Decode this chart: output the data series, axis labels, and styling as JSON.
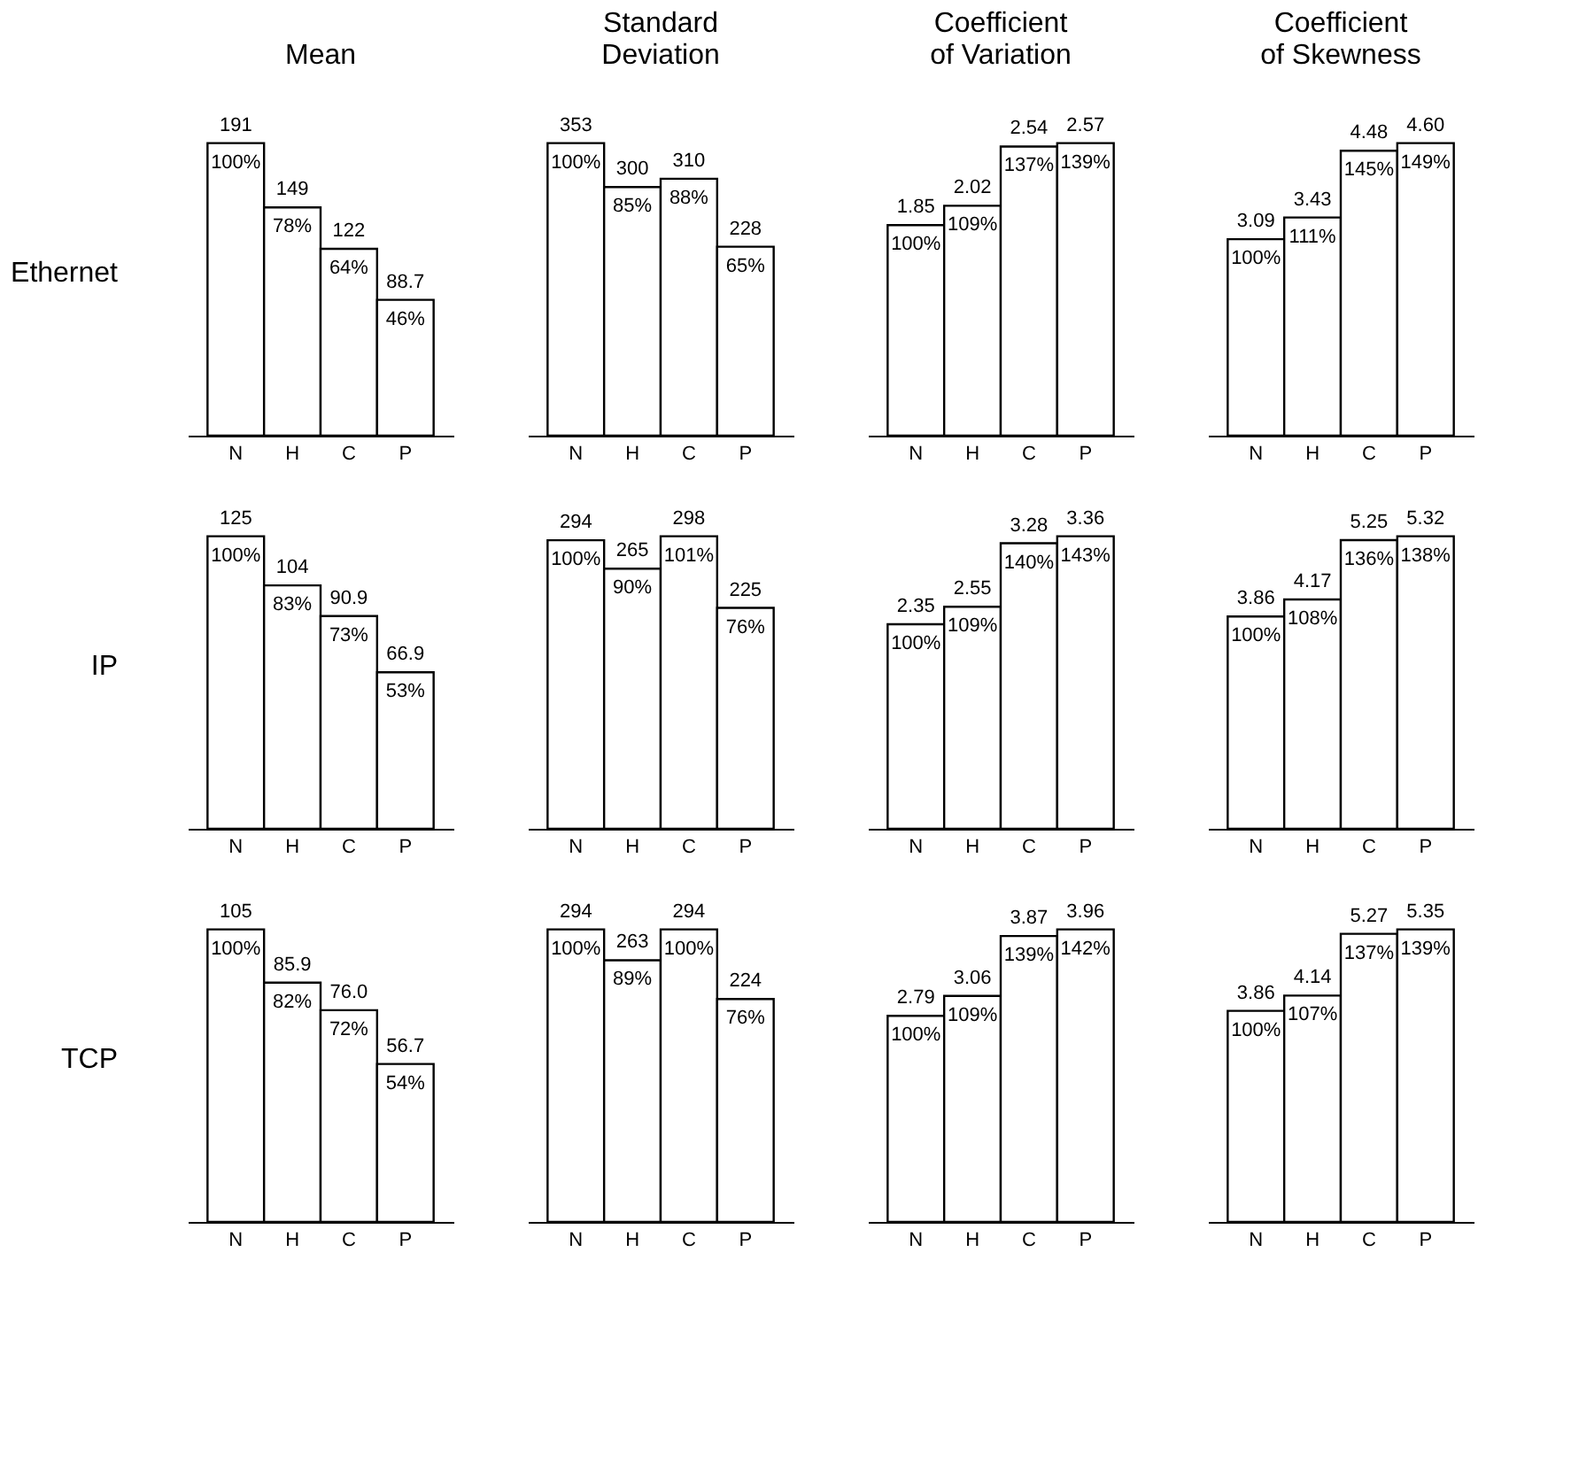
{
  "chart_data": [
    {
      "type": "bar",
      "title": "Mean",
      "ylabel": "Ethernet",
      "categories": [
        "N",
        "H",
        "C",
        "P"
      ],
      "values": [
        191,
        149,
        122,
        88.7
      ],
      "value_labels": [
        "191",
        "149",
        "122",
        "88.7"
      ],
      "color": "#ffffff",
      "tick_labels": "x",
      "annotations": [
        "100%",
        "78%",
        "64%",
        "46%"
      ]
    },
    {
      "type": "bar",
      "title": "Standard Deviation",
      "categories": [
        "N",
        "H",
        "C",
        "P"
      ],
      "values": [
        353,
        300,
        310,
        228
      ],
      "value_labels": [
        "353",
        "300",
        "310",
        "228"
      ],
      "color": "#ffffff",
      "tick_labels": "x",
      "annotations": [
        "100%",
        "85%",
        "88%",
        "65%"
      ]
    },
    {
      "type": "bar",
      "title": "Coefficient of Variation",
      "categories": [
        "N",
        "H",
        "C",
        "P"
      ],
      "values": [
        1.85,
        2.02,
        2.54,
        2.57
      ],
      "value_labels": [
        "1.85",
        "2.02",
        "2.54",
        "2.57"
      ],
      "color": "#ffffff",
      "tick_labels": "x",
      "annotations": [
        "100%",
        "109%",
        "137%",
        "139%"
      ]
    },
    {
      "type": "bar",
      "title": "Coefficient of Skewness",
      "categories": [
        "N",
        "H",
        "C",
        "P"
      ],
      "values": [
        3.09,
        3.43,
        4.48,
        4.6
      ],
      "value_labels": [
        "3.09",
        "3.43",
        "4.48",
        "4.60"
      ],
      "color": "#ffffff",
      "tick_labels": "x",
      "annotations": [
        "100%",
        "111%",
        "145%",
        "149%"
      ]
    },
    {
      "type": "bar",
      "ylabel": "IP",
      "categories": [
        "N",
        "H",
        "C",
        "P"
      ],
      "values": [
        125,
        104,
        90.9,
        66.9
      ],
      "value_labels": [
        "125",
        "104",
        "90.9",
        "66.9"
      ],
      "color": "#ffffff",
      "tick_labels": "x",
      "annotations": [
        "100%",
        "83%",
        "73%",
        "53%"
      ]
    },
    {
      "type": "bar",
      "categories": [
        "N",
        "H",
        "C",
        "P"
      ],
      "values": [
        294,
        265,
        298,
        225
      ],
      "value_labels": [
        "294",
        "265",
        "298",
        "225"
      ],
      "color": "#ffffff",
      "tick_labels": "x",
      "annotations": [
        "100%",
        "90%",
        "101%",
        "76%"
      ]
    },
    {
      "type": "bar",
      "categories": [
        "N",
        "H",
        "C",
        "P"
      ],
      "values": [
        2.35,
        2.55,
        3.28,
        3.36
      ],
      "value_labels": [
        "2.35",
        "2.55",
        "3.28",
        "3.36"
      ],
      "color": "#ffffff",
      "tick_labels": "x",
      "annotations": [
        "100%",
        "109%",
        "140%",
        "143%"
      ]
    },
    {
      "type": "bar",
      "categories": [
        "N",
        "H",
        "C",
        "P"
      ],
      "values": [
        3.86,
        4.17,
        5.25,
        5.32
      ],
      "value_labels": [
        "3.86",
        "4.17",
        "5.25",
        "5.32"
      ],
      "color": "#ffffff",
      "tick_labels": "x",
      "annotations": [
        "100%",
        "108%",
        "136%",
        "138%"
      ]
    },
    {
      "type": "bar",
      "ylabel": "TCP",
      "categories": [
        "N",
        "H",
        "C",
        "P"
      ],
      "values": [
        105,
        85.9,
        76.0,
        56.7
      ],
      "value_labels": [
        "105",
        "85.9",
        "76.0",
        "56.7"
      ],
      "color": "#ffffff",
      "tick_labels": "x",
      "annotations": [
        "100%",
        "82%",
        "72%",
        "54%"
      ]
    },
    {
      "type": "bar",
      "categories": [
        "N",
        "H",
        "C",
        "P"
      ],
      "values": [
        294,
        263,
        294,
        224
      ],
      "value_labels": [
        "294",
        "263",
        "294",
        "224"
      ],
      "color": "#ffffff",
      "tick_labels": "x",
      "annotations": [
        "100%",
        "89%",
        "100%",
        "76%"
      ]
    },
    {
      "type": "bar",
      "categories": [
        "N",
        "H",
        "C",
        "P"
      ],
      "values": [
        2.79,
        3.06,
        3.87,
        3.96
      ],
      "value_labels": [
        "2.79",
        "3.06",
        "3.87",
        "3.96"
      ],
      "color": "#ffffff",
      "tick_labels": "x",
      "annotations": [
        "100%",
        "109%",
        "139%",
        "142%"
      ]
    },
    {
      "type": "bar",
      "categories": [
        "N",
        "H",
        "C",
        "P"
      ],
      "values": [
        3.86,
        4.14,
        5.27,
        5.35
      ],
      "value_labels": [
        "3.86",
        "4.14",
        "5.27",
        "5.35"
      ],
      "color": "#ffffff",
      "tick_labels": "x",
      "annotations": [
        "100%",
        "107%",
        "137%",
        "139%"
      ]
    }
  ]
}
